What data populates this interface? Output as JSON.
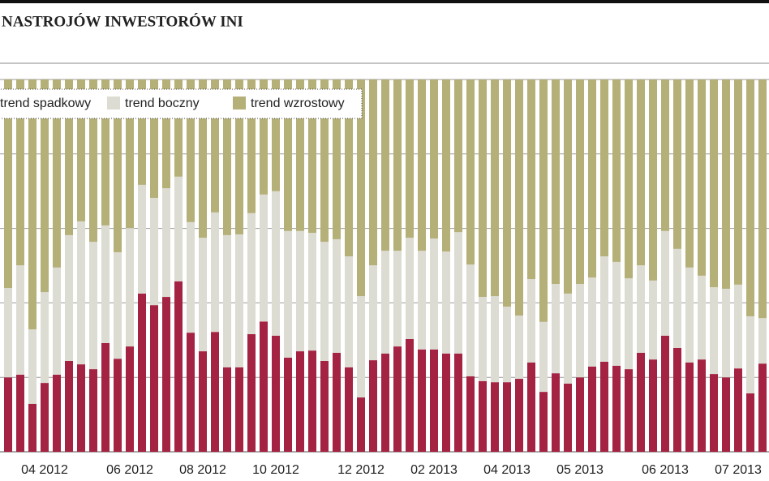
{
  "chart_data": {
    "type": "stacked-bar",
    "title": "NASTROJÓW INWESTORÓW INI",
    "categories": [
      null,
      null,
      null,
      "04 2012",
      null,
      null,
      null,
      null,
      null,
      null,
      "06 2012",
      null,
      null,
      null,
      null,
      null,
      "08 2012",
      null,
      null,
      null,
      null,
      null,
      "10 2012",
      null,
      null,
      null,
      null,
      null,
      null,
      "12 2012",
      null,
      null,
      null,
      null,
      null,
      "02 2013",
      null,
      null,
      null,
      null,
      null,
      "04 2013",
      null,
      null,
      null,
      null,
      null,
      "05 2013",
      null,
      null,
      null,
      null,
      null,
      null,
      "06 2013",
      null,
      null,
      null,
      null,
      null,
      "07 2013",
      null,
      null
    ],
    "series": [
      {
        "name": "trend spadkowy",
        "color": "#a52342",
        "values": [
          20,
          20.7,
          12.9,
          18.5,
          20.7,
          24.4,
          23.5,
          22.2,
          29.2,
          25,
          28.3,
          42.5,
          39.4,
          41.6,
          45.8,
          32,
          27,
          32.2,
          22.7,
          22.7,
          31.6,
          35,
          31.2,
          25.3,
          27,
          27.2,
          24.4,
          26.6,
          22.7,
          14.6,
          24.6,
          26.4,
          28.3,
          30.3,
          27.5,
          27.5,
          26.4,
          26.4,
          20.3,
          19,
          18.7,
          18.7,
          19.6,
          24,
          16.1,
          21.1,
          18.3,
          20,
          22.9,
          24.2,
          23.1,
          22.2,
          26.6,
          24.8,
          31.2,
          27.9,
          24,
          24.8,
          20.9,
          20,
          22.4,
          15.7,
          23.7
        ]
      },
      {
        "name": "trend boczny",
        "color": "#dcdcd3",
        "values": [
          24,
          29.4,
          20,
          24.4,
          28.8,
          33.8,
          38.4,
          34.2,
          31.6,
          28.6,
          31.8,
          29.2,
          28.8,
          29.2,
          28.1,
          29.7,
          30.5,
          32.1,
          35.5,
          35.7,
          32.5,
          34.1,
          38.8,
          34,
          32.3,
          31.6,
          32,
          30.5,
          29.8,
          27.2,
          25.5,
          27.6,
          25.7,
          27.2,
          26.5,
          29.8,
          27.4,
          32.6,
          30,
          22.6,
          23.1,
          20.3,
          17,
          22.4,
          18.8,
          24,
          24.2,
          25.1,
          23.9,
          28.3,
          27.9,
          24.4,
          23.5,
          21.2,
          28.1,
          26.6,
          25.5,
          22.5,
          23.3,
          23.8,
          22.5,
          20.7,
          12.2
        ]
      },
      {
        "name": "trend wzrostowy",
        "color": "#b5af78",
        "values": [
          56,
          49.9,
          67.1,
          57.1,
          50.5,
          41.8,
          38.1,
          43.6,
          39.2,
          46.4,
          39.9,
          28.3,
          31.8,
          29.2,
          26.1,
          38.3,
          42.5,
          35.7,
          41.8,
          41.6,
          35.9,
          30.9,
          30,
          40.7,
          40.7,
          41.2,
          43.6,
          42.9,
          47.5,
          58.2,
          49.9,
          46,
          46,
          42.5,
          46,
          42.7,
          46.2,
          41,
          49.7,
          58.4,
          58.2,
          61,
          63.4,
          53.6,
          65.1,
          54.9,
          57.5,
          54.9,
          53.2,
          47.5,
          49,
          53.4,
          49.9,
          54,
          40.7,
          45.5,
          50.5,
          52.7,
          55.8,
          56.2,
          55.1,
          63.6,
          64.1
        ]
      }
    ],
    "ylim": [
      0,
      100
    ],
    "yticks": [
      0,
      20,
      40,
      60,
      80,
      100
    ],
    "grid": true
  }
}
